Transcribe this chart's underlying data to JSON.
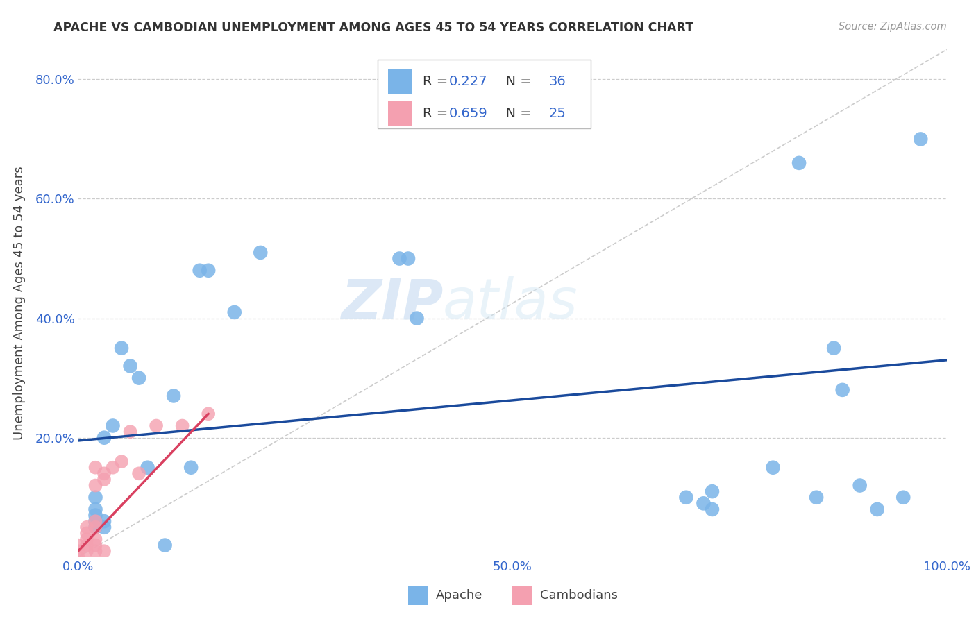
{
  "title": "APACHE VS CAMBODIAN UNEMPLOYMENT AMONG AGES 45 TO 54 YEARS CORRELATION CHART",
  "source": "Source: ZipAtlas.com",
  "ylabel": "Unemployment Among Ages 45 to 54 years",
  "xlim": [
    0.0,
    1.0
  ],
  "ylim": [
    0.0,
    0.85
  ],
  "xticks": [
    0.0,
    0.1,
    0.2,
    0.3,
    0.4,
    0.5,
    0.6,
    0.7,
    0.8,
    0.9,
    1.0
  ],
  "xticklabels": [
    "0.0%",
    "",
    "",
    "",
    "",
    "50.0%",
    "",
    "",
    "",
    "",
    "100.0%"
  ],
  "yticks": [
    0.0,
    0.2,
    0.4,
    0.6,
    0.8
  ],
  "yticklabels": [
    "",
    "20.0%",
    "40.0%",
    "60.0%",
    "80.0%"
  ],
  "apache_color": "#7ab4e8",
  "cambodian_color": "#f4a0b0",
  "apache_line_color": "#1a4a9c",
  "cambodian_line_color": "#d94060",
  "diagonal_color": "#cccccc",
  "watermark_zip": "ZIP",
  "watermark_atlas": "atlas",
  "apache_x": [
    0.02,
    0.02,
    0.02,
    0.02,
    0.02,
    0.03,
    0.03,
    0.03,
    0.04,
    0.05,
    0.06,
    0.07,
    0.08,
    0.1,
    0.11,
    0.13,
    0.14,
    0.15,
    0.18,
    0.21,
    0.37,
    0.38,
    0.39,
    0.7,
    0.72,
    0.73,
    0.73,
    0.8,
    0.83,
    0.85,
    0.87,
    0.88,
    0.9,
    0.92,
    0.95,
    0.97
  ],
  "apache_y": [
    0.05,
    0.06,
    0.07,
    0.08,
    0.1,
    0.05,
    0.06,
    0.2,
    0.22,
    0.35,
    0.32,
    0.3,
    0.15,
    0.02,
    0.27,
    0.15,
    0.48,
    0.48,
    0.41,
    0.51,
    0.5,
    0.5,
    0.4,
    0.1,
    0.09,
    0.08,
    0.11,
    0.15,
    0.66,
    0.1,
    0.35,
    0.28,
    0.12,
    0.08,
    0.1,
    0.7
  ],
  "cambodian_x": [
    0.0,
    0.0,
    0.0,
    0.01,
    0.01,
    0.01,
    0.01,
    0.01,
    0.02,
    0.02,
    0.02,
    0.02,
    0.02,
    0.02,
    0.02,
    0.03,
    0.03,
    0.03,
    0.04,
    0.05,
    0.06,
    0.07,
    0.09,
    0.12,
    0.15
  ],
  "cambodian_y": [
    0.0,
    0.01,
    0.02,
    0.01,
    0.02,
    0.03,
    0.04,
    0.05,
    0.01,
    0.02,
    0.03,
    0.05,
    0.06,
    0.12,
    0.15,
    0.01,
    0.13,
    0.14,
    0.15,
    0.16,
    0.21,
    0.14,
    0.22,
    0.22,
    0.24
  ],
  "apache_trend_x": [
    0.0,
    1.0
  ],
  "apache_trend_y": [
    0.195,
    0.33
  ],
  "cambodian_trend_x": [
    0.0,
    0.15
  ],
  "cambodian_trend_y": [
    0.01,
    0.24
  ]
}
